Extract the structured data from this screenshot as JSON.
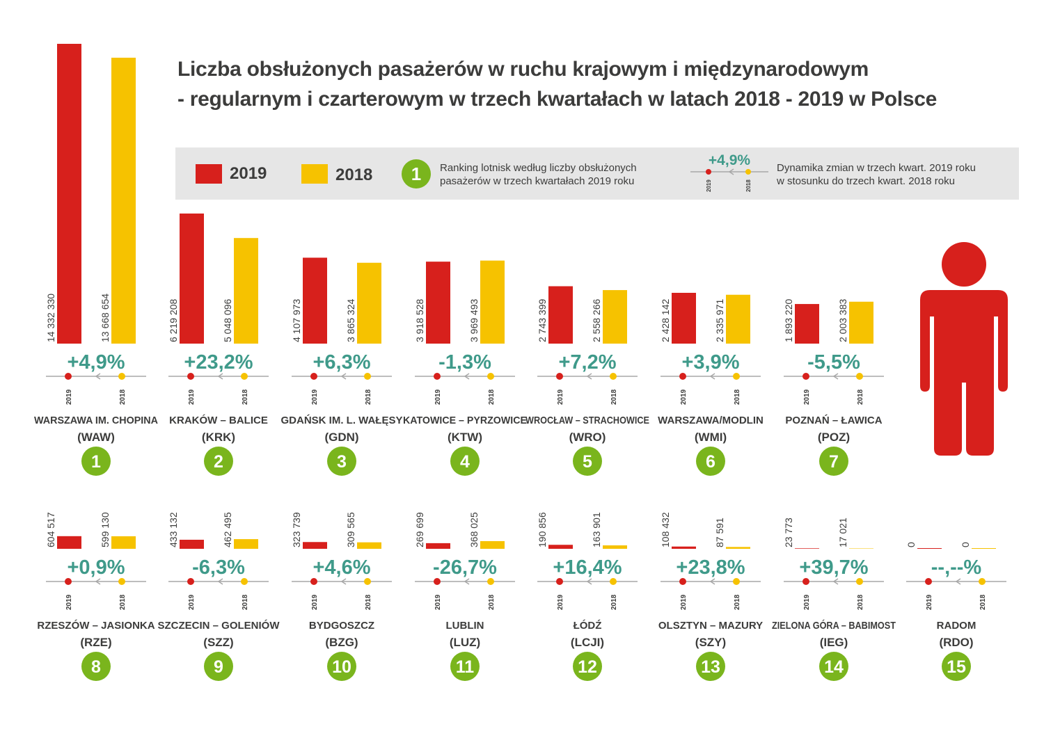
{
  "title": {
    "line1": "Liczba obsłużonych pasażerów w ruchu krajowym i międzynarodowym",
    "line2": "- regularnym i czarterowym w trzech kwartałach w latach 2018 - 2019 w Polsce"
  },
  "legend": {
    "year_2019": "2019",
    "year_2018": "2018",
    "rank_badge": "1",
    "rank_text_line1": "Ranking lotnisk według liczby obsłużonych",
    "rank_text_line2": "pasażerów w trzech kwartałach 2019 roku",
    "sample_change": "+4,9%",
    "sample_axis_2019": "2019",
    "sample_axis_2018": "2018",
    "dyn_text_line1": "Dynamika zmian w trzech kwart. 2019 roku",
    "dyn_text_line2": "w stosunku do trzech kwart. 2018 roku"
  },
  "colors": {
    "y2019": "#d7201c",
    "y2018": "#f6c200",
    "change": "#3f9a8a",
    "badge": "#7ab51d",
    "text": "#3c3c3b",
    "axis": "#a7a7a7",
    "legend_bg": "#e6e6e6"
  },
  "icons": [
    "person-icon"
  ],
  "chart_data": {
    "type": "bar",
    "series": [
      {
        "name": "2019",
        "color": "#d7201c",
        "values": [
          14332330,
          6219208,
          4107973,
          3918528,
          2743399,
          2428142,
          1893220,
          604517,
          433132,
          323739,
          269699,
          190856,
          108432,
          23773,
          0
        ]
      },
      {
        "name": "2018",
        "color": "#f6c200",
        "values": [
          13668654,
          5048096,
          3865324,
          3969493,
          2558266,
          2335971,
          2003383,
          599130,
          462495,
          309565,
          368025,
          163901,
          87591,
          17021,
          0
        ]
      }
    ],
    "airports": [
      {
        "rank": "1",
        "name": "WARSZAWA IM. CHOPINA",
        "code": "(WAW)",
        "v2019": "14 332 330",
        "v2018": "13 668 654",
        "change": "+4,9%"
      },
      {
        "rank": "2",
        "name": "KRAKÓW – BALICE",
        "code": "(KRK)",
        "v2019": "6 219 208",
        "v2018": "5 048 096",
        "change": "+23,2%"
      },
      {
        "rank": "3",
        "name": "GDAŃSK IM. L. WAŁĘSY",
        "code": "(GDN)",
        "v2019": "4 107 973",
        "v2018": "3 865 324",
        "change": "+6,3%"
      },
      {
        "rank": "4",
        "name": "KATOWICE – PYRZOWICE",
        "code": "(KTW)",
        "v2019": "3 918 528",
        "v2018": "3 969 493",
        "change": "-1,3%"
      },
      {
        "rank": "5",
        "name": "WROCŁAW – STRACHOWICE",
        "code": "(WRO)",
        "v2019": "2 743 399",
        "v2018": "2 558 266",
        "change": "+7,2%"
      },
      {
        "rank": "6",
        "name": "WARSZAWA/MODLIN",
        "code": "(WMI)",
        "v2019": "2 428 142",
        "v2018": "2 335 971",
        "change": "+3,9%"
      },
      {
        "rank": "7",
        "name": "POZNAŃ – ŁAWICA",
        "code": "(POZ)",
        "v2019": "1 893 220",
        "v2018": "2 003 383",
        "change": "-5,5%"
      },
      {
        "rank": "8",
        "name": "RZESZÓW – JASIONKA",
        "code": "(RZE)",
        "v2019": "604 517",
        "v2018": "599 130",
        "change": "+0,9%"
      },
      {
        "rank": "9",
        "name": "SZCZECIN – GOLENIÓW",
        "code": "(SZZ)",
        "v2019": "433 132",
        "v2018": "462 495",
        "change": "-6,3%"
      },
      {
        "rank": "10",
        "name": "BYDGOSZCZ",
        "code": "(BZG)",
        "v2019": "323 739",
        "v2018": "309 565",
        "change": "+4,6%"
      },
      {
        "rank": "11",
        "name": "LUBLIN",
        "code": "(LUZ)",
        "v2019": "269 699",
        "v2018": "368 025",
        "change": "-26,7%"
      },
      {
        "rank": "12",
        "name": "ŁÓDŹ",
        "code": "(LCJI)",
        "v2019": "190 856",
        "v2018": "163 901",
        "change": "+16,4%"
      },
      {
        "rank": "13",
        "name": "OLSZTYN – MAZURY",
        "code": "(SZY)",
        "v2019": "108 432",
        "v2018": "87 591",
        "change": "+23,8%"
      },
      {
        "rank": "14",
        "name": "ZIELONA GÓRA – BABIMOST",
        "code": "(IEG)",
        "v2019": "23 773",
        "v2018": "17 021",
        "change": "+39,7%"
      },
      {
        "rank": "15",
        "name": "RADOM",
        "code": "(RDO)",
        "v2019": "0",
        "v2018": "0",
        "change": "--,--%"
      }
    ],
    "axis_label_2019": "2019",
    "axis_label_2018": "2018",
    "grid": false
  }
}
